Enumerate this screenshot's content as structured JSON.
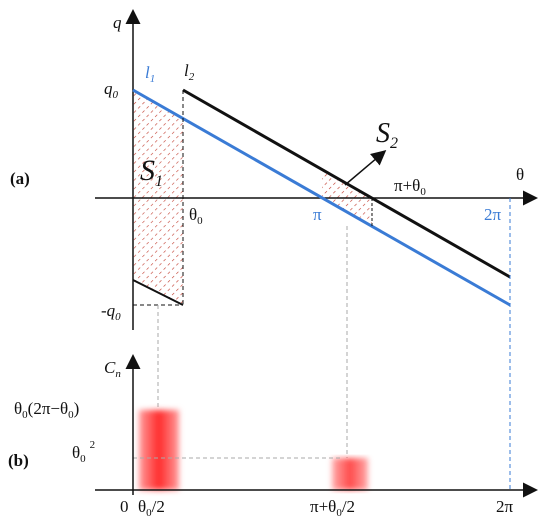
{
  "panel_a": {
    "tag": "(a)",
    "y_axis": "q",
    "x_axis": "θ",
    "q0": {
      "base": "q",
      "sub": "0"
    },
    "neg_q0": {
      "base": "-q",
      "sub": "0"
    },
    "l1": {
      "base": "l",
      "sub": "1"
    },
    "l2": {
      "base": "l",
      "sub": "2"
    },
    "S1": {
      "base": "S",
      "sub": "1"
    },
    "S2": {
      "base": "S",
      "sub": "2"
    },
    "theta0": {
      "base": "θ",
      "sub": "0"
    },
    "pi": "π",
    "pi_theta0": {
      "base": "π+θ",
      "sub": "0"
    },
    "two_pi": "2π"
  },
  "panel_b": {
    "tag": "(b)",
    "y_axis": {
      "base": "C",
      "sub": "n"
    },
    "high": {
      "a": "θ",
      "a_sub": "0",
      "b": "(2π−θ",
      "b_sub": "0",
      "c": ")"
    },
    "low": {
      "base": "θ",
      "sub": "0",
      "sup": "2"
    },
    "zero": "0",
    "half": {
      "base": "θ",
      "sub": "0",
      "rest": "/2"
    },
    "pi_half": {
      "base": "π+θ",
      "sub": "0",
      "rest": "/2"
    },
    "two_pi": "2π"
  }
}
